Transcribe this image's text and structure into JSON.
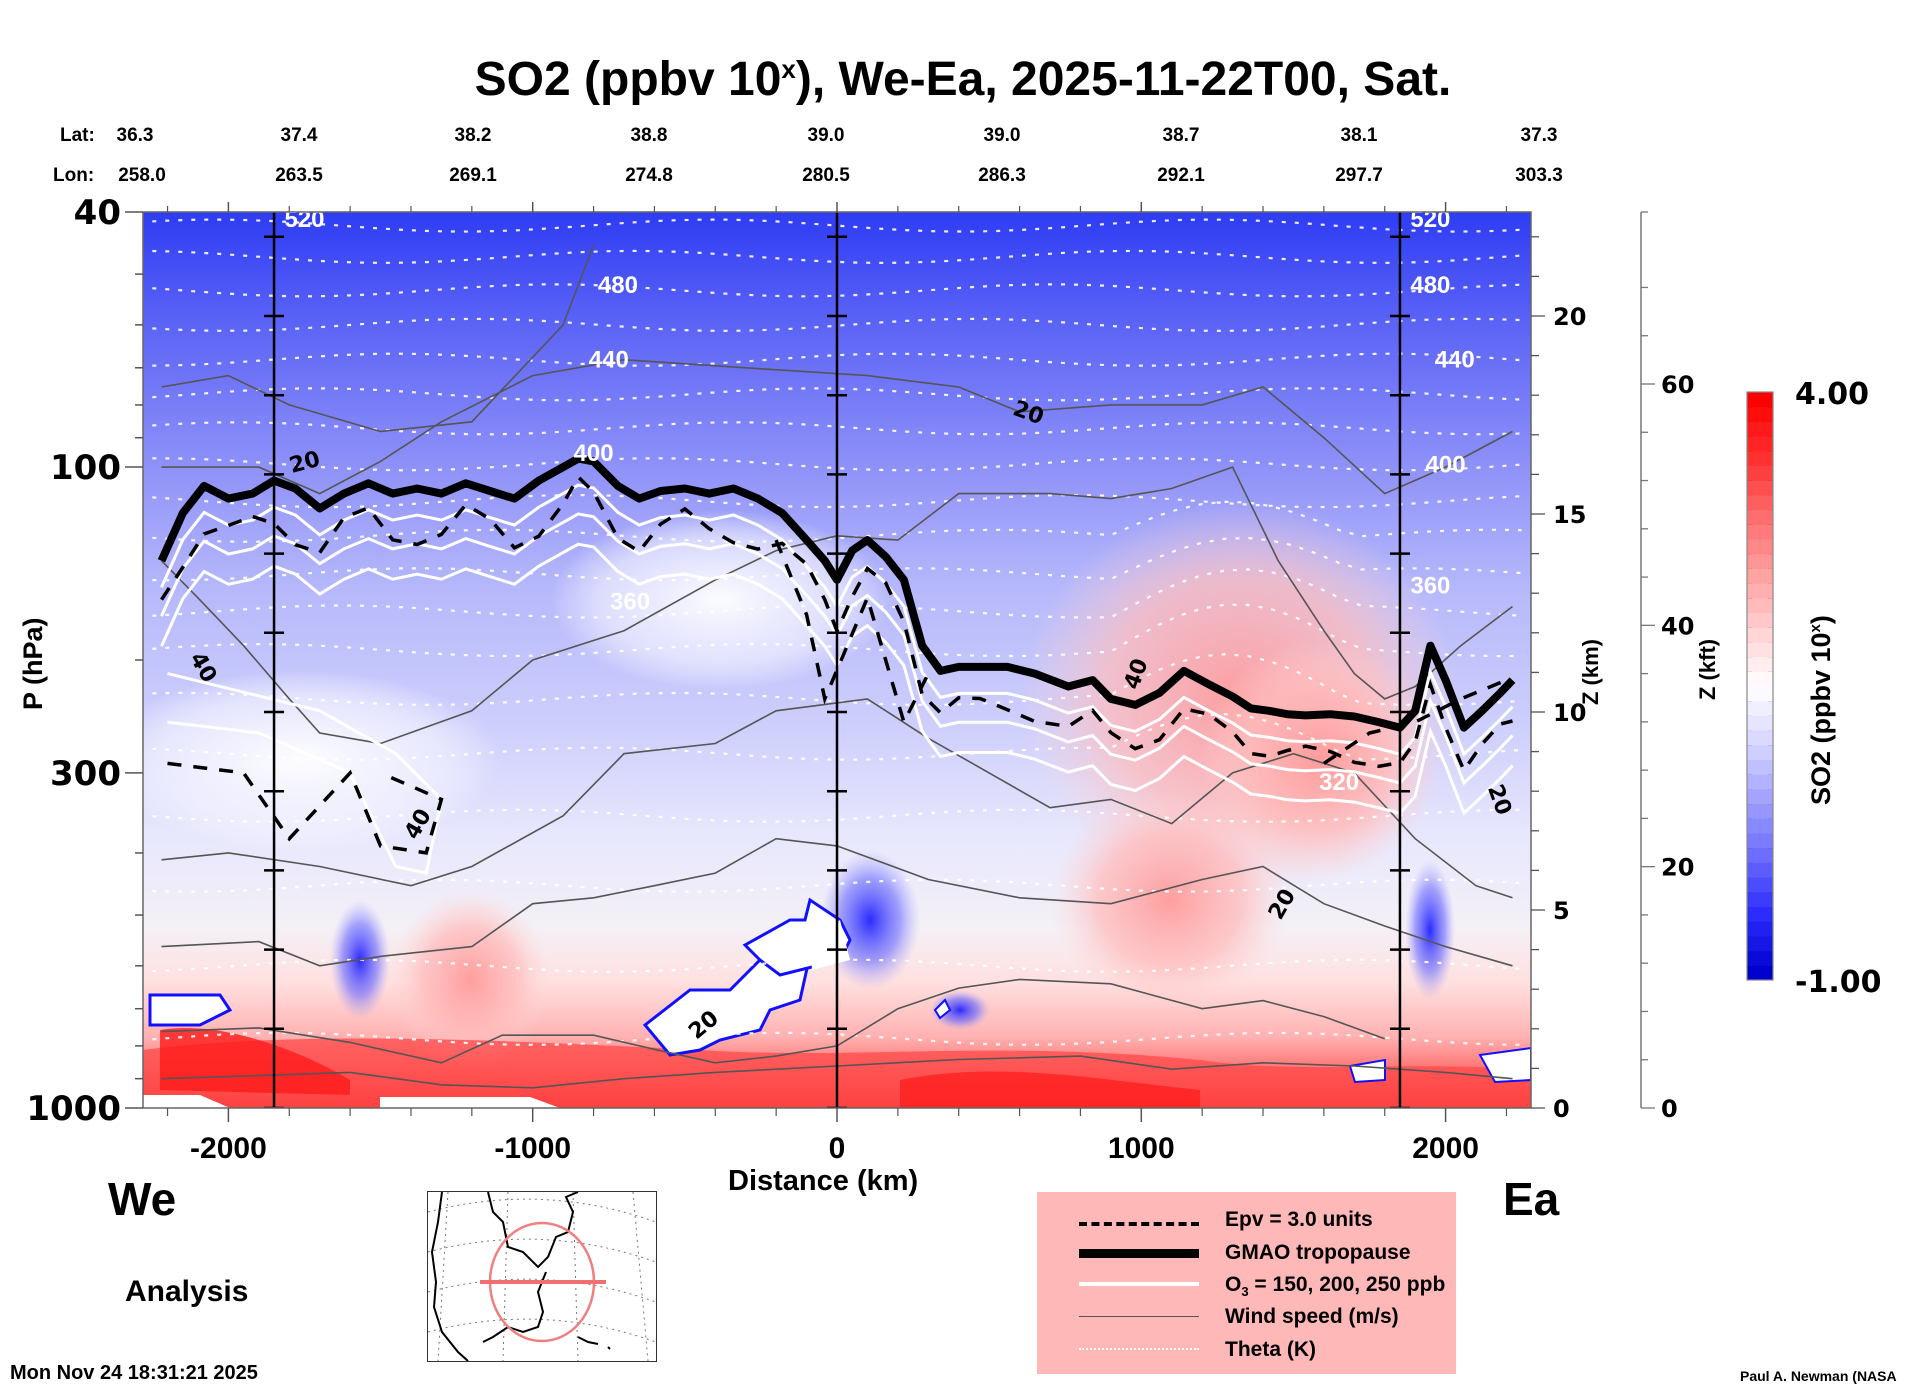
{
  "title": {
    "prefix": "SO2 (ppbv 10",
    "sup": "x",
    "suffix": "), We-Ea, 2025-11-22T00, Sat."
  },
  "coords": {
    "lat_label": "Lat:",
    "lon_label": "Lon:",
    "distances_km": [
      -1850,
      -1300,
      -750,
      -200,
      300,
      850,
      1400,
      1900,
      2400
    ],
    "lat": [
      "36.3",
      "37.4",
      "38.2",
      "38.8",
      "39.0",
      "39.0",
      "38.7",
      "38.1",
      "37.3"
    ],
    "lon": [
      "258.0",
      "263.5",
      "269.1",
      "274.8",
      "280.5",
      "286.3",
      "292.1",
      "297.7",
      "303.3"
    ]
  },
  "chart_data": {
    "type": "heatmap",
    "subtype": "vertical cross-section contour",
    "title": "SO2 (ppbv 10^x), We-Ea, 2025-11-22T00, Sat.",
    "xlabel": "Distance (km)",
    "ylabel": "P (hPa)",
    "y2label": "Z (km)",
    "y3label": "Z (kft)",
    "xlim": [
      -2220,
      2220
    ],
    "ylim": [
      1000,
      40
    ],
    "yscale": "log",
    "x_ticks": [
      -2000,
      -1000,
      0,
      1000,
      2000
    ],
    "x_tick_labels": [
      "-2000",
      "-1000",
      "0",
      "1000",
      "2000"
    ],
    "y_ticks": [
      40,
      100,
      300,
      1000
    ],
    "y_tick_labels": [
      "40",
      "100",
      "300",
      "1000"
    ],
    "z_km_ticks": [
      0,
      5,
      10,
      15,
      20
    ],
    "z_kft_ticks": [
      0,
      20,
      40,
      60
    ],
    "vertical_lines_km": [
      -1850,
      0,
      1850
    ],
    "colorbar": {
      "label": "SO2 (ppbv 10^x)",
      "min": -1.0,
      "max": 4.0,
      "min_label": "-1.00",
      "max_label": "4.00",
      "colors": [
        "#0000cc",
        "#2a2aff",
        "#6a6aff",
        "#a0a0ff",
        "#d6d6ff",
        "#ffffff",
        "#ffd0d0",
        "#ff9e9e",
        "#ff6a6a",
        "#ff3030",
        "#ff0000"
      ]
    },
    "theta_labels_K": [
      {
        "x": -1750,
        "p": 41,
        "text": "520"
      },
      {
        "x": -720,
        "p": 52,
        "text": "480"
      },
      {
        "x": -750,
        "p": 68,
        "text": "440"
      },
      {
        "x": -800,
        "p": 95,
        "text": "400"
      },
      {
        "x": -680,
        "p": 162,
        "text": "360"
      },
      {
        "x": 1950,
        "p": 41,
        "text": "520"
      },
      {
        "x": 1950,
        "p": 52,
        "text": "480"
      },
      {
        "x": 2030,
        "p": 68,
        "text": "440"
      },
      {
        "x": 2000,
        "p": 99,
        "text": "400"
      },
      {
        "x": 1950,
        "p": 153,
        "text": "360"
      },
      {
        "x": 1650,
        "p": 310,
        "text": "320"
      }
    ],
    "theta_levels_p": [
      42,
      47,
      53,
      60,
      68,
      77,
      87,
      99,
      113,
      128,
      147,
      168,
      193,
      230,
      280,
      350,
      450,
      600,
      780
    ],
    "wind_labels_ms": [
      {
        "x": -1750,
        "p": 98,
        "text": "20",
        "rot": -15
      },
      {
        "x": 630,
        "p": 82,
        "text": "20",
        "rot": 20
      },
      {
        "x": -2080,
        "p": 205,
        "text": "40",
        "rot": 60
      },
      {
        "x": -1380,
        "p": 360,
        "text": "40",
        "rot": -60
      },
      {
        "x": 980,
        "p": 210,
        "text": "40",
        "rot": -70
      },
      {
        "x": 1460,
        "p": 480,
        "text": "20",
        "rot": -60
      },
      {
        "x": 2180,
        "p": 330,
        "text": "20",
        "rot": 70
      },
      {
        "x": -440,
        "p": 740,
        "text": "20",
        "rot": -40
      }
    ],
    "tropopause": {
      "x": [
        -2220,
        -2150,
        -2080,
        -2000,
        -1920,
        -1850,
        -1780,
        -1700,
        -1620,
        -1540,
        -1460,
        -1380,
        -1300,
        -1220,
        -1140,
        -1060,
        -980,
        -900,
        -850,
        -800,
        -720,
        -650,
        -580,
        -500,
        -420,
        -340,
        -260,
        -180,
        -100,
        -40,
        0,
        50,
        100,
        160,
        220,
        280,
        340,
        400,
        470,
        560,
        650,
        760,
        840,
        900,
        980,
        1060,
        1140,
        1220,
        1300,
        1360,
        1420,
        1480,
        1540,
        1620,
        1700,
        1780,
        1850,
        1900,
        1950,
        2000,
        2060,
        2120,
        2180,
        2220
      ],
      "p": [
        140,
        118,
        107,
        112,
        110,
        105,
        108,
        116,
        110,
        106,
        110,
        108,
        110,
        106,
        109,
        112,
        105,
        100,
        97,
        98,
        107,
        112,
        109,
        108,
        110,
        108,
        112,
        118,
        130,
        140,
        150,
        135,
        130,
        138,
        150,
        190,
        208,
        205,
        205,
        205,
        210,
        220,
        215,
        230,
        235,
        225,
        208,
        218,
        228,
        238,
        240,
        243,
        244,
        243,
        245,
        250,
        255,
        240,
        190,
        215,
        255,
        240,
        225,
        215
      ]
    },
    "legend": [
      {
        "label": "Epv = 3.0 units",
        "style": "dashed"
      },
      {
        "label": "GMAO tropopause",
        "style": "thick"
      },
      {
        "label_prefix": "O",
        "label_sub": "3",
        "label_suffix": " = 150, 200, 250 ppb",
        "style": "white"
      },
      {
        "label": "Wind speed (m/s)",
        "style": "thin"
      },
      {
        "label": "Theta (K)",
        "style": "dotted"
      }
    ]
  },
  "legend": {
    "epv": "Epv = 3.0 units",
    "tropopause": "GMAO tropopause",
    "o3_prefix": "O",
    "o3_sub": "3",
    "o3_suffix": " = 150, 200, 250 ppb",
    "wind": "Wind speed (m/s)",
    "theta": "Theta (K)"
  },
  "labels": {
    "xlabel": "Distance (km)",
    "ylabel": "P (hPa)",
    "zkm": "Z (km)",
    "zkft": "Z (kft)",
    "cbar_prefix": "SO2 (ppbv 10",
    "cbar_sup": "x",
    "cbar_suffix": ")",
    "cbar_max": "4.00",
    "cbar_min": "-1.00",
    "west": "We",
    "east": "Ea",
    "analysis": "Analysis",
    "timestamp": "Mon Nov 24 18:31:21 2025",
    "credit": "Paul A. Newman (NASA"
  }
}
